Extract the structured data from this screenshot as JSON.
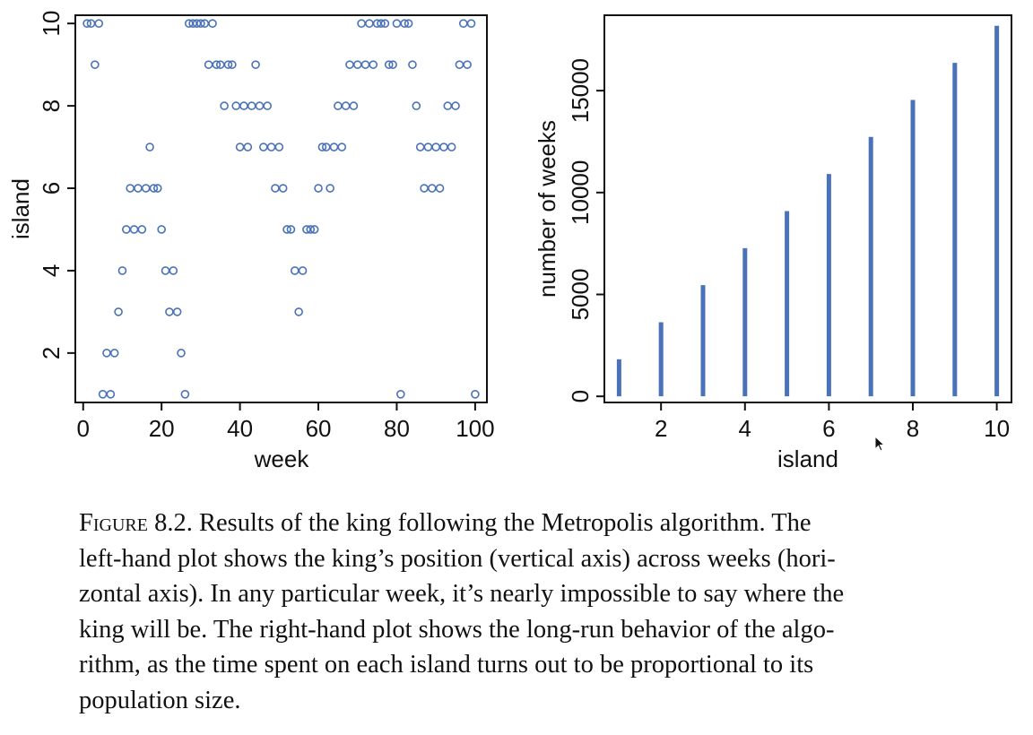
{
  "colors": {
    "series": "#4a72b8",
    "axis": "#111111"
  },
  "chart_data": [
    {
      "type": "scatter",
      "xlabel": "week",
      "ylabel": "island",
      "xlim": [
        -2,
        103
      ],
      "ylim": [
        0.8,
        10.2
      ],
      "xticks": [
        0,
        20,
        40,
        60,
        80,
        100
      ],
      "yticks": [
        2,
        4,
        6,
        8,
        10
      ],
      "grid": false,
      "marker": "open-circle",
      "x": [
        1,
        2,
        3,
        4,
        5,
        6,
        7,
        8,
        9,
        10,
        11,
        12,
        13,
        14,
        15,
        16,
        17,
        18,
        19,
        20,
        21,
        22,
        23,
        24,
        25,
        26,
        27,
        28,
        29,
        30,
        31,
        32,
        33,
        34,
        35,
        36,
        37,
        38,
        39,
        40,
        41,
        42,
        43,
        44,
        45,
        46,
        47,
        48,
        49,
        50,
        51,
        52,
        53,
        54,
        55,
        56,
        57,
        58,
        59,
        60,
        61,
        62,
        63,
        64,
        65,
        66,
        67,
        68,
        69,
        70,
        71,
        72,
        73,
        74,
        75,
        76,
        77,
        78,
        79,
        80,
        81,
        82,
        83,
        84,
        85,
        86,
        87,
        88,
        89,
        90,
        91,
        92,
        93,
        94,
        95,
        96,
        97,
        98,
        99,
        100
      ],
      "y": [
        10,
        10,
        9,
        10,
        1,
        2,
        1,
        2,
        3,
        4,
        5,
        6,
        5,
        6,
        5,
        6,
        7,
        6,
        6,
        5,
        4,
        3,
        4,
        3,
        2,
        1,
        10,
        10,
        10,
        10,
        10,
        9,
        10,
        9,
        9,
        8,
        9,
        9,
        8,
        7,
        8,
        7,
        8,
        9,
        8,
        7,
        8,
        7,
        6,
        7,
        6,
        5,
        5,
        4,
        3,
        4,
        5,
        5,
        5,
        6,
        7,
        7,
        6,
        7,
        8,
        7,
        8,
        9,
        8,
        9,
        10,
        9,
        10,
        9,
        10,
        10,
        10,
        9,
        9,
        10,
        1,
        10,
        10,
        9,
        8,
        7,
        6,
        7,
        6,
        7,
        6,
        7,
        8,
        7,
        8,
        9,
        10,
        9,
        10,
        1
      ]
    },
    {
      "type": "bar",
      "style": "needle",
      "xlabel": "island",
      "ylabel": "number of weeks",
      "categories": [
        1,
        2,
        3,
        4,
        5,
        6,
        7,
        8,
        9,
        10
      ],
      "values": [
        1818,
        3636,
        5455,
        7273,
        9091,
        10909,
        12727,
        14545,
        16364,
        18182
      ],
      "xlim": [
        0.65,
        10.35
      ],
      "ylim": [
        -300,
        18700
      ],
      "xticks": [
        2,
        4,
        6,
        8,
        10
      ],
      "yticks": [
        0,
        5000,
        10000,
        15000
      ],
      "grid": false
    }
  ],
  "caption": {
    "lines": [
      {
        "lead": "Figure 8.2.",
        "text": " Results of the king following the Metropolis algorithm.  The"
      },
      {
        "text": "left-hand plot shows the king’s position (vertical axis) across weeks (hori-"
      },
      {
        "text": "zontal axis).  In any particular week, it’s nearly impossible to say where the"
      },
      {
        "text": "king will be.  The right-hand plot shows the long-run behavior of the algo-"
      },
      {
        "text": "rithm, as the time spent on each island turns out to be proportional to its"
      },
      {
        "text": "population size."
      }
    ]
  }
}
